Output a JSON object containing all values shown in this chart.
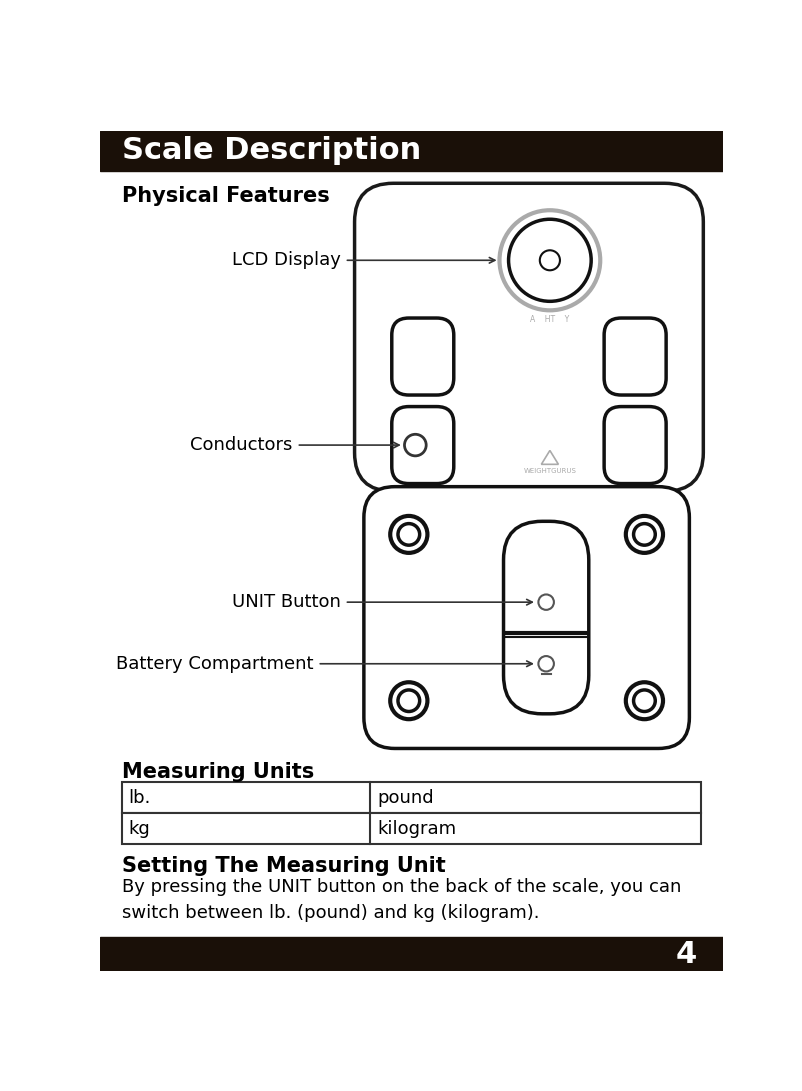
{
  "title": "Scale Description",
  "title_bg": "#1a1008",
  "title_color": "#ffffff",
  "title_fontsize": 22,
  "page_bg": "#ffffff",
  "section1_title": "Physical Features",
  "section2_title": "Measuring Units",
  "section3_title": "Setting The Measuring Unit",
  "section3_body": "By pressing the UNIT button on the back of the scale, you can\nswitch between lb. (pound) and kg (kilogram).",
  "label_lcd": "LCD Display",
  "label_conductors": "Conductors",
  "label_unit_btn": "UNIT Button",
  "label_battery": "Battery Compartment",
  "table_data": [
    [
      "lb.",
      "pound"
    ],
    [
      "kg",
      "kilogram"
    ]
  ],
  "footer_bg": "#1a1008",
  "footer_text": "4",
  "footer_color": "#ffffff",
  "body_fontsize": 13,
  "label_fontsize": 13
}
